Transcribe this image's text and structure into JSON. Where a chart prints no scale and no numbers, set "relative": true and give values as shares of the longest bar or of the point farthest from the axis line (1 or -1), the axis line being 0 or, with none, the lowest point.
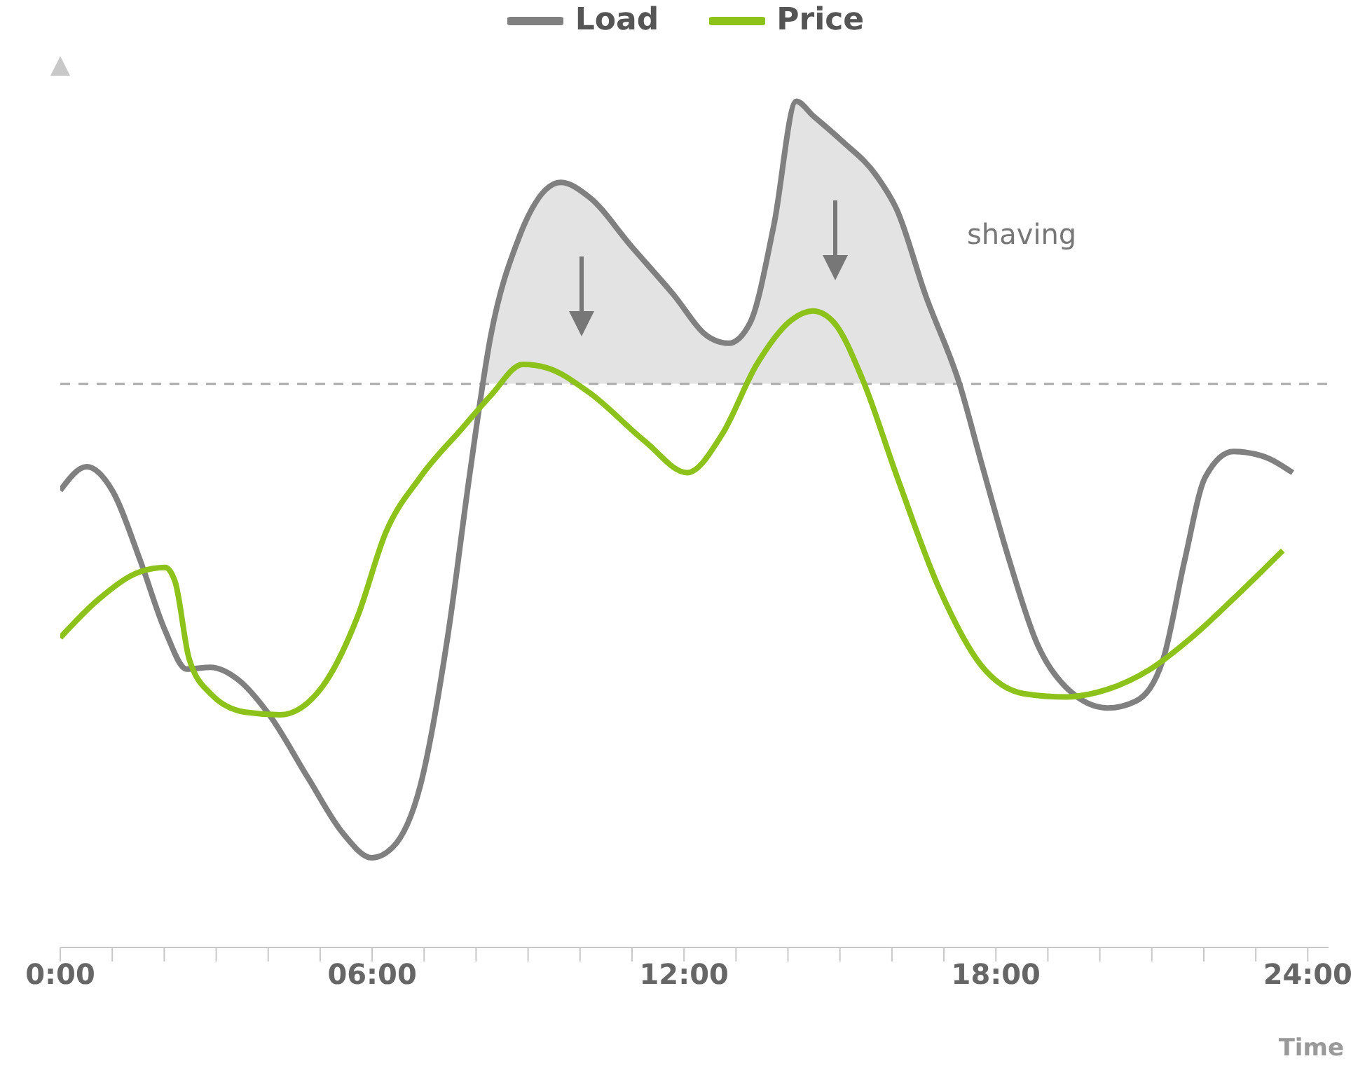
{
  "chart_data": {
    "type": "line",
    "relative": true,
    "xlabel": "Time",
    "legend": "top",
    "marker": "none",
    "xlim": [
      0,
      24.4
    ],
    "xticks": [
      {
        "value": 0,
        "label": "0:00"
      },
      {
        "value": 1,
        "label": null
      },
      {
        "value": 2,
        "label": null
      },
      {
        "value": 3,
        "label": null
      },
      {
        "value": 4,
        "label": null
      },
      {
        "value": 5,
        "label": null
      },
      {
        "value": 6,
        "label": "06:00"
      },
      {
        "value": 7,
        "label": null
      },
      {
        "value": 8,
        "label": null
      },
      {
        "value": 9,
        "label": null
      },
      {
        "value": 10,
        "label": null
      },
      {
        "value": 11,
        "label": null
      },
      {
        "value": 12,
        "label": "12:00"
      },
      {
        "value": 13,
        "label": null
      },
      {
        "value": 14,
        "label": null
      },
      {
        "value": 15,
        "label": null
      },
      {
        "value": 16,
        "label": null
      },
      {
        "value": 17,
        "label": null
      },
      {
        "value": 18,
        "label": "18:00"
      },
      {
        "value": 19,
        "label": null
      },
      {
        "value": 20,
        "label": null
      },
      {
        "value": 21,
        "label": null
      },
      {
        "value": 22,
        "label": null
      },
      {
        "value": 23,
        "label": null
      },
      {
        "value": 24,
        "label": "24:00"
      }
    ],
    "ref_lines": [
      {
        "axis": "y",
        "value": 0.666,
        "label": null,
        "color": "#aaaaaa",
        "line_style": "dashed"
      }
    ],
    "annotations": [
      "shaving"
    ],
    "series": [
      {
        "name": "Load",
        "color": "#808080",
        "x": [
          0,
          0.51,
          1.0,
          1.54,
          2.02,
          2.43,
          2.89,
          3.43,
          4.02,
          4.77,
          5.45,
          5.99,
          6.39,
          6.93,
          7.47,
          7.87,
          8.28,
          8.82,
          9.63,
          10.17,
          10.98,
          11.79,
          12.46,
          12.86,
          13.27,
          13.73,
          14.16,
          14.48,
          15.02,
          15.7,
          16.1,
          16.64,
          17.31,
          17.72,
          18.26,
          18.8,
          19.34,
          20.15,
          20.69,
          21.22,
          21.63,
          22.03,
          22.57,
          23.11,
          23.71
        ],
        "values": [
          0.54,
          0.568,
          0.54,
          0.457,
          0.374,
          0.329,
          0.331,
          0.316,
          0.275,
          0.2,
          0.134,
          0.106,
          0.118,
          0.192,
          0.374,
          0.556,
          0.722,
          0.838,
          0.904,
          0.887,
          0.829,
          0.772,
          0.722,
          0.714,
          0.738,
          0.854,
          1,
          0.983,
          0.954,
          0.912,
          0.871,
          0.772,
          0.664,
          0.573,
          0.457,
          0.358,
          0.308,
          0.283,
          0.291,
          0.341,
          0.457,
          0.556,
          0.586,
          0.581,
          0.561
        ]
      },
      {
        "name": "Price",
        "color": "#8cc21a",
        "x": [
          0,
          0.73,
          1.54,
          2.02,
          2.21,
          2.48,
          2.89,
          3.56,
          4.23,
          5.04,
          5.72,
          6.26,
          6.93,
          7.74,
          8.28,
          8.9,
          9.36,
          10.17,
          11.25,
          12.06,
          12.73,
          13.4,
          14.08,
          14.48,
          14.89,
          15.43,
          16.1,
          16.91,
          17.72,
          18.53,
          19.34,
          20.15,
          20.95,
          21.76,
          22.57,
          23.52
        ],
        "values": [
          0.366,
          0.411,
          0.444,
          0.449,
          0.432,
          0.341,
          0.3,
          0.278,
          0.275,
          0.308,
          0.391,
          0.49,
          0.556,
          0.614,
          0.652,
          0.689,
          0.685,
          0.656,
          0.598,
          0.561,
          0.606,
          0.689,
          0.742,
          0.752,
          0.738,
          0.672,
          0.556,
          0.424,
          0.333,
          0.3,
          0.296,
          0.305,
          0.328,
          0.366,
          0.412,
          0.469
        ]
      }
    ]
  }
}
